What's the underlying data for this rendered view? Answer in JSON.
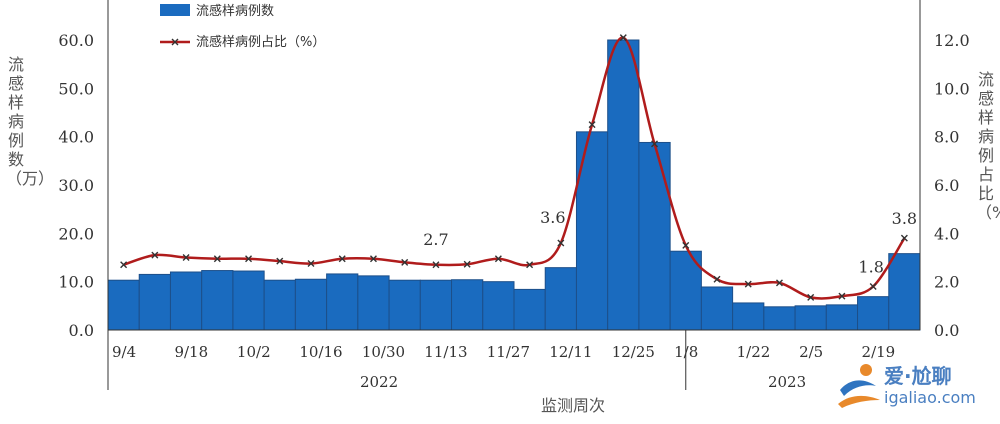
{
  "chart_data": {
    "type": "bar",
    "xlabel": "监测周次",
    "ylabel_left": "流感样病例数（万）",
    "ylabel_right": "流感样病例占比（%）",
    "legend": {
      "bar": "流感样病例数",
      "line": "流感样病例占比（%）",
      "placement": "top-left"
    },
    "left_axis": {
      "range": [
        0,
        60
      ],
      "ticks": [
        "0.0",
        "10.0",
        "20.0",
        "30.0",
        "40.0",
        "50.0",
        "60.0"
      ]
    },
    "right_axis": {
      "range": [
        0,
        12
      ],
      "ticks": [
        "0.0",
        "2.0",
        "4.0",
        "6.0",
        "8.0",
        "10.0",
        "12.0"
      ]
    },
    "colors": {
      "bar": "#1a6bbf",
      "bar_edge": "#1c4f8a",
      "line": "#b01c1c",
      "marker": "#333333"
    },
    "week_labels": [
      "9/4",
      "9/18",
      "10/2",
      "10/16",
      "10/30",
      "11/13",
      "11/27",
      "12/11",
      "12/25",
      "1/8",
      "1/22",
      "2/5",
      "2/19"
    ],
    "years": [
      "2022",
      "2023"
    ],
    "series": [
      {
        "name": "流感样病例数",
        "values": [
          10.3,
          11.5,
          12.0,
          12.3,
          12.2,
          10.3,
          10.5,
          11.6,
          11.2,
          10.3,
          10.3,
          10.4,
          10.0,
          8.4,
          12.9,
          41.0,
          60.0,
          38.8,
          16.3,
          8.9,
          5.6,
          4.8,
          5.0,
          5.2,
          6.9,
          15.8
        ]
      },
      {
        "name": "流感样病例占比（%）",
        "values": [
          2.7,
          3.1,
          3.0,
          2.95,
          2.95,
          2.85,
          2.75,
          2.95,
          2.95,
          2.8,
          2.7,
          2.72,
          2.95,
          2.7,
          3.6,
          8.5,
          12.1,
          7.7,
          3.5,
          2.1,
          1.9,
          1.95,
          1.35,
          1.4,
          1.8,
          3.8
        ]
      }
    ],
    "annotations": [
      {
        "index": 10,
        "text": "2.7"
      },
      {
        "index": 14,
        "text": "3.6"
      },
      {
        "index": 24,
        "text": "1.8"
      },
      {
        "index": 25,
        "text": "3.8"
      }
    ]
  },
  "watermark": {
    "brand": "爱·尬聊",
    "url": "igaliao.com"
  }
}
